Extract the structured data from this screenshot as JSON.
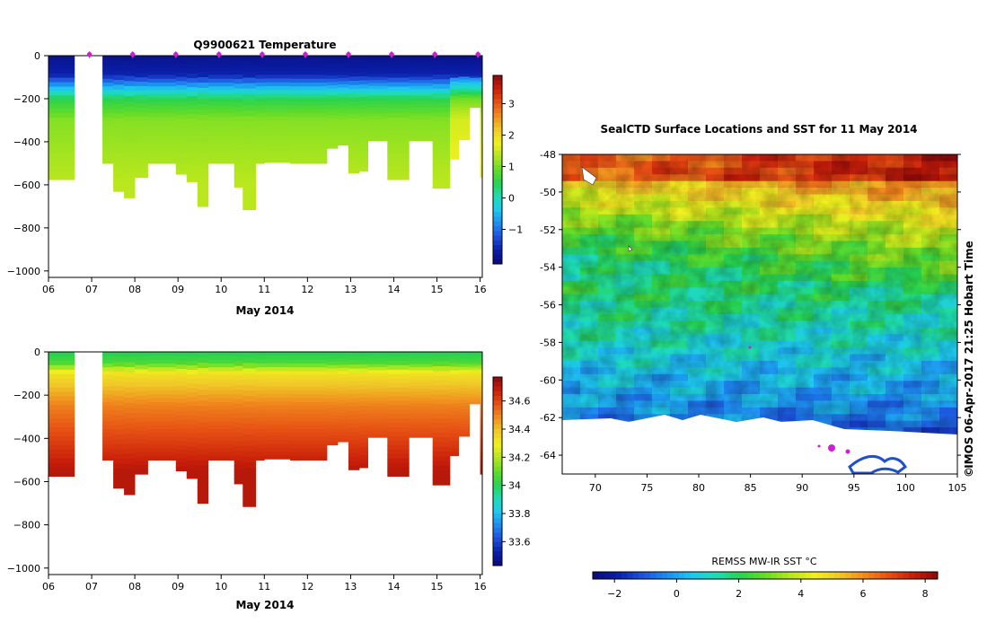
{
  "chart_data": [
    {
      "type": "heatmap",
      "title": "Q9900621  Temperature",
      "xlabel": "May 2014",
      "ylabel": "",
      "x_ticks": [
        "06",
        "07",
        "08",
        "09",
        "10",
        "11",
        "12",
        "13",
        "14",
        "15",
        "16"
      ],
      "x_range": [
        6.0,
        16.05
      ],
      "y_ticks": [
        "0",
        "−200",
        "−400",
        "−600",
        "−800",
        "−1000"
      ],
      "y_range": [
        -1030,
        0
      ],
      "colorbar": {
        "min": -2.1,
        "max": 3.9,
        "ticks": [
          "3",
          "2",
          "1",
          "0",
          "−1"
        ],
        "tick_values": [
          3,
          2,
          1,
          0,
          -1
        ]
      },
      "profile_markers_day": [
        6.95,
        7.95,
        8.95,
        9.95,
        10.95,
        11.95,
        12.95,
        13.95,
        14.95,
        15.95
      ],
      "profiles": [
        {
          "t0": 6.0,
          "t1": 6.6,
          "depth": 575
        },
        {
          "t0": 7.25,
          "t1": 7.5,
          "depth": 500
        },
        {
          "t0": 7.5,
          "t1": 7.75,
          "depth": 630
        },
        {
          "t0": 7.75,
          "t1": 8.0,
          "depth": 660
        },
        {
          "t0": 8.0,
          "t1": 8.3,
          "depth": 565
        },
        {
          "t0": 8.3,
          "t1": 8.95,
          "depth": 500
        },
        {
          "t0": 8.95,
          "t1": 9.2,
          "depth": 550
        },
        {
          "t0": 9.2,
          "t1": 9.45,
          "depth": 585
        },
        {
          "t0": 9.45,
          "t1": 9.7,
          "depth": 700
        },
        {
          "t0": 9.7,
          "t1": 10.3,
          "depth": 500
        },
        {
          "t0": 10.3,
          "t1": 10.5,
          "depth": 610
        },
        {
          "t0": 10.5,
          "t1": 10.8,
          "depth": 715
        },
        {
          "t0": 10.8,
          "t1": 11.0,
          "depth": 500
        },
        {
          "t0": 11.0,
          "t1": 11.6,
          "depth": 495
        },
        {
          "t0": 11.6,
          "t1": 12.45,
          "depth": 500
        },
        {
          "t0": 12.45,
          "t1": 12.7,
          "depth": 430
        },
        {
          "t0": 12.7,
          "t1": 12.95,
          "depth": 415
        },
        {
          "t0": 12.95,
          "t1": 13.2,
          "depth": 545
        },
        {
          "t0": 13.2,
          "t1": 13.4,
          "depth": 535
        },
        {
          "t0": 13.4,
          "t1": 13.85,
          "depth": 395
        },
        {
          "t0": 13.85,
          "t1": 14.35,
          "depth": 575
        },
        {
          "t0": 14.35,
          "t1": 14.9,
          "depth": 395
        },
        {
          "t0": 14.9,
          "t1": 15.3,
          "depth": 615
        },
        {
          "t0": 15.3,
          "t1": 15.5,
          "depth": 480
        },
        {
          "t0": 15.5,
          "t1": 15.75,
          "depth": 390
        },
        {
          "t0": 15.75,
          "t1": 16.0,
          "depth": 240
        },
        {
          "t0": 16.0,
          "t1": 16.05,
          "depth": 565
        }
      ]
    },
    {
      "type": "heatmap",
      "title": "",
      "xlabel": "May 2014",
      "ylabel": "",
      "x_ticks": [
        "06",
        "07",
        "08",
        "09",
        "10",
        "11",
        "12",
        "13",
        "14",
        "15",
        "16"
      ],
      "x_range": [
        6.0,
        16.05
      ],
      "y_ticks": [
        "0",
        "−200",
        "−400",
        "−600",
        "−800",
        "−1000"
      ],
      "y_range": [
        -1030,
        0
      ],
      "colorbar": {
        "min": 33.43,
        "max": 34.77,
        "ticks": [
          "34.6",
          "34.4",
          "34.2",
          "34",
          "33.8",
          "33.6"
        ],
        "tick_values": [
          34.6,
          34.4,
          34.2,
          34.0,
          33.8,
          33.6
        ]
      }
    },
    {
      "type": "heatmap",
      "title": "SealCTD Surface Locations and SST for 11 May 2014",
      "xlabel": "",
      "ylabel": "",
      "x_ticks": [
        "70",
        "75",
        "80",
        "85",
        "90",
        "95",
        "100",
        "105"
      ],
      "x_range": [
        66.8,
        105
      ],
      "y_ticks": [
        "-48",
        "-50",
        "-52",
        "-54",
        "-56",
        "-58",
        "-60",
        "-62",
        "-64"
      ],
      "y_range": [
        -65,
        -48
      ],
      "colorbar": {
        "label": "REMSS MW-IR SST °C",
        "min": -2.7,
        "max": 8.4,
        "ticks": [
          "−2",
          "0",
          "2",
          "4",
          "6",
          "8"
        ],
        "tick_values": [
          -2,
          0,
          2,
          4,
          6,
          8
        ]
      },
      "credit": "IMOS 06-Apr-2017 21:25 Hobart Time",
      "copyright": "©"
    }
  ],
  "colors": {
    "jet": [
      "#0a0a7a",
      "#0a1ea6",
      "#1e50dc",
      "#1e8cf0",
      "#1ec8f0",
      "#1edcb4",
      "#28d250",
      "#64dc28",
      "#b4e61e",
      "#f0f01e",
      "#f0c828",
      "#f08c1e",
      "#e65014",
      "#c81e0a",
      "#8c0a0a"
    ],
    "marker": "#d21ed2",
    "land": "#ffffff",
    "ice": "#1e50c8"
  }
}
